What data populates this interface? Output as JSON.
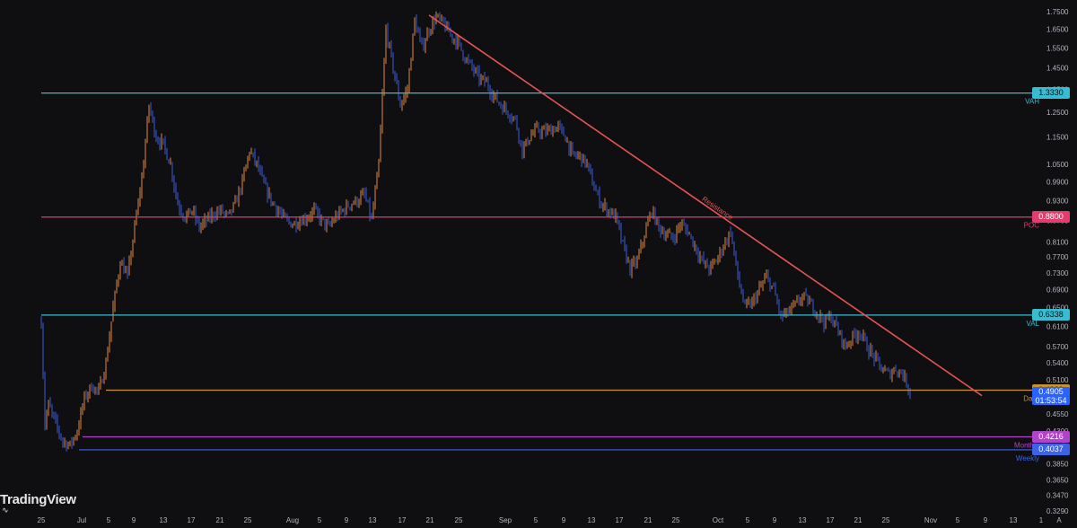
{
  "watermark": {
    "text": "TradingView"
  },
  "colors": {
    "background": "#0f0f12",
    "candle_up": "#e08a3a",
    "candle_down": "#3d5ed8",
    "resistance": "#e85454",
    "vah": "#38bcd1",
    "poc": "#e23d6f",
    "val": "#38bcd1",
    "daily": "#c9922a",
    "monthly": "#b043c8",
    "weekly": "#3c63e6",
    "current": "#2962ff"
  },
  "chart_data": {
    "type": "candlestick",
    "x_axis": {
      "tick_labels": [
        "25",
        "Jul",
        "5",
        "9",
        "13",
        "17",
        "21",
        "25",
        "Aug",
        "5",
        "9",
        "13",
        "17",
        "21",
        "25",
        "Sep",
        "5",
        "9",
        "13",
        "17",
        "21",
        "25",
        "Oct",
        "5",
        "9",
        "13",
        "17",
        "21",
        "25",
        "Nov",
        "5",
        "9",
        "13",
        "1"
      ]
    },
    "y_axis": {
      "scale": "log",
      "range": [
        0.33,
        1.82
      ],
      "tick_labels": [
        "1.7500",
        "1.6500",
        "1.5500",
        "1.4500",
        "1.3500",
        "1.2500",
        "1.1500",
        "1.0500",
        "0.9900",
        "0.9300",
        "0.8700",
        "0.8100",
        "0.7700",
        "0.7300",
        "0.6900",
        "0.6500",
        "0.6100",
        "0.5700",
        "0.5400",
        "0.5100",
        "0.4800",
        "0.4550",
        "0.4300",
        "0.4050",
        "0.3850",
        "0.3650",
        "0.3470",
        "0.3290"
      ]
    },
    "price_path": [
      {
        "d": 0,
        "p": 0.62
      },
      {
        "d": 0.5,
        "p": 0.44
      },
      {
        "d": 1,
        "p": 0.47
      },
      {
        "d": 2,
        "p": 0.44
      },
      {
        "d": 3,
        "p": 0.415
      },
      {
        "d": 4,
        "p": 0.41
      },
      {
        "d": 5,
        "p": 0.43
      },
      {
        "d": 6,
        "p": 0.48
      },
      {
        "d": 7,
        "p": 0.5
      },
      {
        "d": 8,
        "p": 0.49
      },
      {
        "d": 9,
        "p": 0.54
      },
      {
        "d": 10,
        "p": 0.65
      },
      {
        "d": 11,
        "p": 0.76
      },
      {
        "d": 12,
        "p": 0.72
      },
      {
        "d": 13,
        "p": 0.85
      },
      {
        "d": 14,
        "p": 1.0
      },
      {
        "d": 15,
        "p": 1.28
      },
      {
        "d": 16,
        "p": 1.15
      },
      {
        "d": 17,
        "p": 1.12
      },
      {
        "d": 18,
        "p": 1.05
      },
      {
        "d": 19,
        "p": 0.92
      },
      {
        "d": 20,
        "p": 0.88
      },
      {
        "d": 21,
        "p": 0.9
      },
      {
        "d": 22,
        "p": 0.85
      },
      {
        "d": 23,
        "p": 0.87
      },
      {
        "d": 24,
        "p": 0.89
      },
      {
        "d": 25,
        "p": 0.9
      },
      {
        "d": 26,
        "p": 0.88
      },
      {
        "d": 27,
        "p": 0.92
      },
      {
        "d": 28,
        "p": 0.99
      },
      {
        "d": 29,
        "p": 1.1
      },
      {
        "d": 30,
        "p": 1.05
      },
      {
        "d": 31,
        "p": 0.98
      },
      {
        "d": 32,
        "p": 0.93
      },
      {
        "d": 33,
        "p": 0.9
      },
      {
        "d": 34,
        "p": 0.87
      },
      {
        "d": 35,
        "p": 0.86
      },
      {
        "d": 36,
        "p": 0.87
      },
      {
        "d": 37,
        "p": 0.88
      },
      {
        "d": 38,
        "p": 0.9
      },
      {
        "d": 39,
        "p": 0.87
      },
      {
        "d": 40,
        "p": 0.85
      },
      {
        "d": 41,
        "p": 0.88
      },
      {
        "d": 42,
        "p": 0.9
      },
      {
        "d": 43,
        "p": 0.92
      },
      {
        "d": 44,
        "p": 0.93
      },
      {
        "d": 45,
        "p": 0.95
      },
      {
        "d": 46,
        "p": 0.87
      },
      {
        "d": 47,
        "p": 1.05
      },
      {
        "d": 48,
        "p": 1.65
      },
      {
        "d": 49,
        "p": 1.45
      },
      {
        "d": 50,
        "p": 1.28
      },
      {
        "d": 51,
        "p": 1.35
      },
      {
        "d": 52,
        "p": 1.7
      },
      {
        "d": 53,
        "p": 1.55
      },
      {
        "d": 54,
        "p": 1.65
      },
      {
        "d": 55,
        "p": 1.72
      },
      {
        "d": 56,
        "p": 1.68
      },
      {
        "d": 57,
        "p": 1.62
      },
      {
        "d": 58,
        "p": 1.58
      },
      {
        "d": 59,
        "p": 1.5
      },
      {
        "d": 60,
        "p": 1.45
      },
      {
        "d": 61,
        "p": 1.4
      },
      {
        "d": 62,
        "p": 1.38
      },
      {
        "d": 63,
        "p": 1.32
      },
      {
        "d": 64,
        "p": 1.28
      },
      {
        "d": 65,
        "p": 1.25
      },
      {
        "d": 66,
        "p": 1.22
      },
      {
        "d": 67,
        "p": 1.1
      },
      {
        "d": 68,
        "p": 1.15
      },
      {
        "d": 69,
        "p": 1.18
      },
      {
        "d": 70,
        "p": 1.17
      },
      {
        "d": 71,
        "p": 1.18
      },
      {
        "d": 72,
        "p": 1.19
      },
      {
        "d": 73,
        "p": 1.15
      },
      {
        "d": 74,
        "p": 1.08
      },
      {
        "d": 75,
        "p": 1.08
      },
      {
        "d": 76,
        "p": 1.05
      },
      {
        "d": 77,
        "p": 0.97
      },
      {
        "d": 78,
        "p": 0.92
      },
      {
        "d": 79,
        "p": 0.9
      },
      {
        "d": 80,
        "p": 0.88
      },
      {
        "d": 81,
        "p": 0.8
      },
      {
        "d": 82,
        "p": 0.74
      },
      {
        "d": 83,
        "p": 0.76
      },
      {
        "d": 84,
        "p": 0.83
      },
      {
        "d": 85,
        "p": 0.9
      },
      {
        "d": 86,
        "p": 0.85
      },
      {
        "d": 87,
        "p": 0.83
      },
      {
        "d": 88,
        "p": 0.82
      },
      {
        "d": 89,
        "p": 0.86
      },
      {
        "d": 90,
        "p": 0.84
      },
      {
        "d": 91,
        "p": 0.8
      },
      {
        "d": 92,
        "p": 0.76
      },
      {
        "d": 93,
        "p": 0.74
      },
      {
        "d": 94,
        "p": 0.76
      },
      {
        "d": 95,
        "p": 0.8
      },
      {
        "d": 96,
        "p": 0.84
      },
      {
        "d": 97,
        "p": 0.72
      },
      {
        "d": 98,
        "p": 0.65
      },
      {
        "d": 99,
        "p": 0.66
      },
      {
        "d": 100,
        "p": 0.69
      },
      {
        "d": 101,
        "p": 0.72
      },
      {
        "d": 102,
        "p": 0.69
      },
      {
        "d": 103,
        "p": 0.63
      },
      {
        "d": 104,
        "p": 0.64
      },
      {
        "d": 105,
        "p": 0.655
      },
      {
        "d": 106,
        "p": 0.675
      },
      {
        "d": 107,
        "p": 0.66
      },
      {
        "d": 108,
        "p": 0.64
      },
      {
        "d": 109,
        "p": 0.62
      },
      {
        "d": 110,
        "p": 0.63
      },
      {
        "d": 111,
        "p": 0.6
      },
      {
        "d": 112,
        "p": 0.57
      },
      {
        "d": 113,
        "p": 0.59
      },
      {
        "d": 114,
        "p": 0.6
      },
      {
        "d": 115,
        "p": 0.57
      },
      {
        "d": 116,
        "p": 0.55
      },
      {
        "d": 117,
        "p": 0.53
      },
      {
        "d": 118,
        "p": 0.52
      },
      {
        "d": 119,
        "p": 0.53
      },
      {
        "d": 120,
        "p": 0.52
      },
      {
        "d": 121,
        "p": 0.4905
      }
    ],
    "trendline": {
      "label": "Resistance",
      "start": {
        "d": 54,
        "p": 1.73
      },
      "end": {
        "d": 131,
        "p": 0.484
      }
    },
    "levels": [
      {
        "name": "VAH",
        "price": "1.3330",
        "value": 1.333,
        "color_key": "vah",
        "tag_text_color": "#0f0f12"
      },
      {
        "name": "POC",
        "price": "0.8800",
        "value": 0.88,
        "color_key": "poc",
        "tag_text_color": "#ffffff"
      },
      {
        "name": "VAL",
        "price": "0.6338",
        "value": 0.6338,
        "color_key": "val",
        "tag_text_color": "#0f0f12"
      },
      {
        "name": "Daily",
        "price": "0.4929",
        "value": 0.4929,
        "color_key": "daily",
        "tag_text_color": "#0f0f12"
      },
      {
        "name": "Monthly",
        "price": "0.4216",
        "value": 0.4216,
        "color_key": "monthly",
        "tag_text_color": "#ffffff"
      },
      {
        "name": "Weekly",
        "price": "0.4037",
        "value": 0.4037,
        "color_key": "weekly",
        "tag_text_color": "#ffffff"
      }
    ],
    "current_price": {
      "value": 0.4905,
      "label": "0.4905",
      "countdown": "01:53:54"
    }
  }
}
